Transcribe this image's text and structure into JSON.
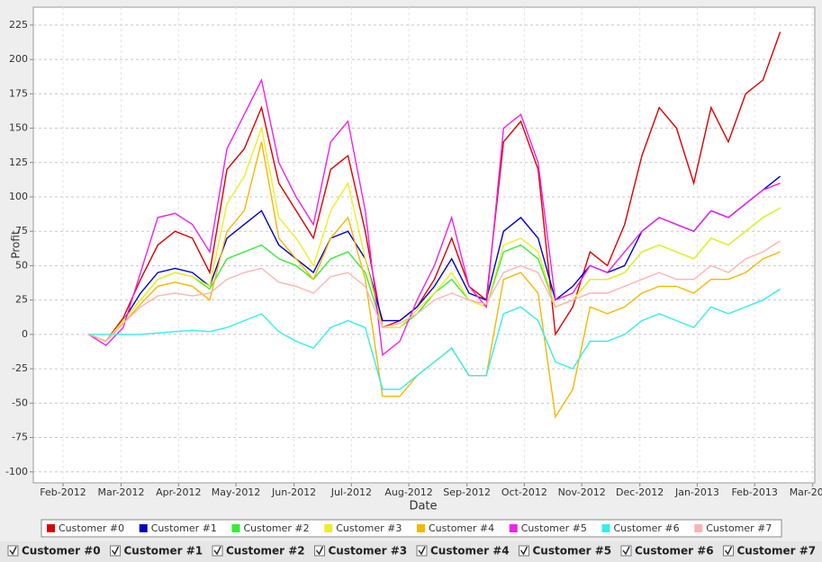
{
  "chart_data": {
    "type": "line",
    "xlabel": "Date",
    "ylabel": "Profit",
    "grid": true,
    "legend": "bottom",
    "x": [
      2012.12,
      2012.145,
      2012.17,
      2012.195,
      2012.22,
      2012.245,
      2012.27,
      2012.295,
      2012.32,
      2012.345,
      2012.37,
      2012.395,
      2012.42,
      2012.445,
      2012.47,
      2012.495,
      2012.52,
      2012.545,
      2012.57,
      2012.595,
      2012.62,
      2012.645,
      2012.67,
      2012.695,
      2012.72,
      2012.745,
      2012.77,
      2012.795,
      2012.82,
      2012.845,
      2012.87,
      2012.895,
      2012.92,
      2012.945,
      2012.97,
      2012.995,
      2013.02,
      2013.045,
      2013.07,
      2013.095,
      2013.12
    ],
    "xlim": [
      2012.04,
      2013.17
    ],
    "xticks": [
      {
        "value": 2012.083,
        "label": "Feb-2012"
      },
      {
        "value": 2012.167,
        "label": "Mar-2012"
      },
      {
        "value": 2012.25,
        "label": "Apr-2012"
      },
      {
        "value": 2012.333,
        "label": "May-2012"
      },
      {
        "value": 2012.417,
        "label": "Jun-2012"
      },
      {
        "value": 2012.5,
        "label": "Jul-2012"
      },
      {
        "value": 2012.583,
        "label": "Aug-2012"
      },
      {
        "value": 2012.667,
        "label": "Sep-2012"
      },
      {
        "value": 2012.75,
        "label": "Oct-2012"
      },
      {
        "value": 2012.833,
        "label": "Nov-2012"
      },
      {
        "value": 2012.917,
        "label": "Dec-2012"
      },
      {
        "value": 2013.0,
        "label": "Jan-2013"
      },
      {
        "value": 2013.083,
        "label": "Feb-2013"
      },
      {
        "value": 2013.167,
        "label": "Mar-2013"
      }
    ],
    "ylim": [
      -108,
      238
    ],
    "yticks": [
      -100,
      -75,
      -50,
      -25,
      0,
      25,
      50,
      75,
      100,
      125,
      150,
      175,
      200,
      225
    ],
    "series": [
      {
        "name": "Customer #0",
        "color": "#dd0000",
        "values": [
          0,
          -5,
          12,
          40,
          65,
          75,
          70,
          45,
          120,
          135,
          165,
          110,
          90,
          70,
          120,
          130,
          75,
          5,
          10,
          20,
          40,
          70,
          35,
          25,
          140,
          155,
          120,
          0,
          20,
          60,
          50,
          80,
          130,
          165,
          150,
          110,
          165,
          140,
          175,
          185,
          220
        ]
      },
      {
        "name": "Customer #1",
        "color": "#0000cc",
        "values": [
          0,
          -5,
          10,
          30,
          45,
          48,
          45,
          35,
          70,
          80,
          90,
          65,
          55,
          45,
          70,
          75,
          55,
          10,
          10,
          20,
          35,
          55,
          30,
          25,
          75,
          85,
          70,
          25,
          35,
          50,
          45,
          50,
          75,
          85,
          80,
          75,
          90,
          85,
          95,
          105,
          115
        ]
      },
      {
        "name": "Customer #2",
        "color": "#33ee33",
        "values": [
          0,
          -5,
          10,
          25,
          40,
          45,
          42,
          33,
          55,
          60,
          65,
          55,
          50,
          40,
          55,
          60,
          45,
          5,
          5,
          15,
          30,
          40,
          25,
          20,
          60,
          65,
          55,
          20,
          25,
          40,
          40,
          45,
          60,
          65,
          60,
          55,
          70,
          65,
          75,
          85,
          92
        ]
      },
      {
        "name": "Customer #3",
        "color": "#eeee22",
        "values": [
          0,
          -5,
          10,
          25,
          40,
          45,
          42,
          35,
          95,
          115,
          150,
          85,
          70,
          50,
          90,
          110,
          55,
          5,
          5,
          18,
          30,
          45,
          25,
          20,
          65,
          70,
          60,
          20,
          25,
          40,
          40,
          45,
          60,
          65,
          60,
          55,
          70,
          65,
          75,
          85,
          92
        ]
      },
      {
        "name": "Customer #4",
        "color": "#f5b800",
        "values": [
          0,
          -5,
          8,
          22,
          35,
          38,
          35,
          25,
          75,
          90,
          140,
          70,
          55,
          40,
          70,
          85,
          40,
          -45,
          -45,
          -30,
          -20,
          -10,
          -30,
          -30,
          40,
          45,
          30,
          -60,
          -40,
          20,
          15,
          20,
          30,
          35,
          35,
          30,
          40,
          40,
          45,
          55,
          60
        ]
      },
      {
        "name": "Customer #5",
        "color": "#ee22ee",
        "values": [
          0,
          -8,
          5,
          45,
          85,
          88,
          80,
          60,
          135,
          160,
          185,
          125,
          100,
          80,
          140,
          155,
          90,
          -15,
          -5,
          25,
          50,
          85,
          35,
          20,
          150,
          160,
          125,
          25,
          30,
          50,
          45,
          60,
          75,
          85,
          80,
          75,
          90,
          85,
          95,
          105,
          110
        ]
      },
      {
        "name": "Customer #6",
        "color": "#33eeee",
        "values": [
          0,
          0,
          0,
          0,
          1,
          2,
          3,
          2,
          5,
          10,
          15,
          2,
          -5,
          -10,
          5,
          10,
          5,
          -40,
          -40,
          -30,
          -20,
          -10,
          -30,
          -30,
          15,
          20,
          10,
          -20,
          -25,
          -5,
          -5,
          0,
          10,
          15,
          10,
          5,
          20,
          15,
          20,
          25,
          33
        ]
      },
      {
        "name": "Customer #7",
        "color": "#ffb3b3",
        "values": [
          0,
          -5,
          8,
          20,
          28,
          30,
          28,
          30,
          40,
          45,
          48,
          38,
          35,
          30,
          42,
          45,
          35,
          5,
          8,
          15,
          25,
          30,
          25,
          22,
          45,
          50,
          45,
          20,
          25,
          30,
          30,
          35,
          40,
          45,
          40,
          40,
          50,
          45,
          55,
          60,
          68
        ]
      }
    ]
  }
}
